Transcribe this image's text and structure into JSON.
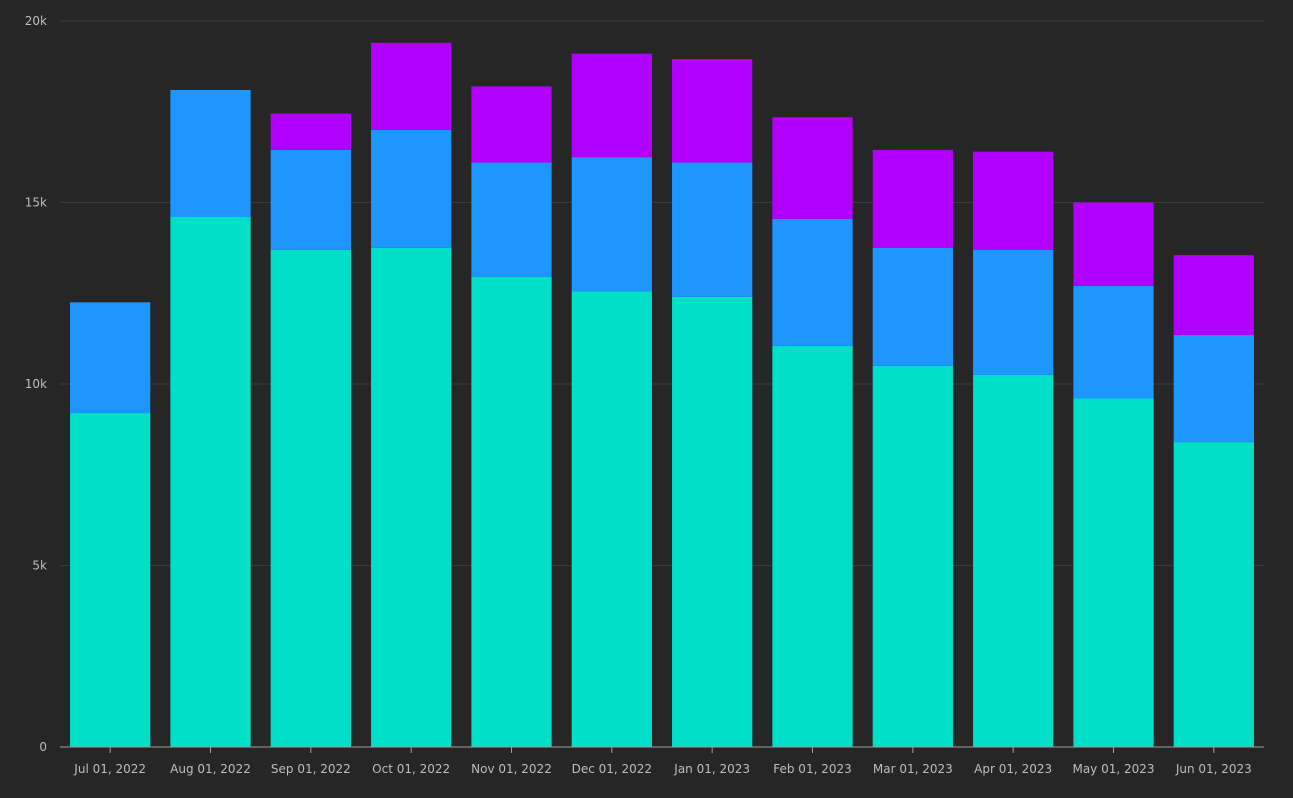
{
  "chart_data": {
    "type": "bar",
    "stacked": true,
    "title": "",
    "xlabel": "",
    "ylabel": "",
    "ylim": [
      0,
      20000
    ],
    "y_ticks": [
      {
        "value": 0,
        "label": "0"
      },
      {
        "value": 5000,
        "label": "5k"
      },
      {
        "value": 10000,
        "label": "10k"
      },
      {
        "value": 15000,
        "label": "15k"
      },
      {
        "value": 20000,
        "label": "20k"
      }
    ],
    "grid": true,
    "legend": "none",
    "categories": [
      "Jul 01, 2022",
      "Aug 01, 2022",
      "Sep 01, 2022",
      "Oct 01, 2022",
      "Nov 01, 2022",
      "Dec 01, 2022",
      "Jan 01, 2023",
      "Feb 01, 2023",
      "Mar 01, 2023",
      "Apr 01, 2023",
      "May 01, 2023",
      "Jun 01, 2023"
    ],
    "series": [
      {
        "color": "#00e0c8",
        "values": [
          9200,
          14600,
          13700,
          13750,
          12950,
          12550,
          12400,
          11050,
          10500,
          10250,
          9600,
          8400
        ]
      },
      {
        "color": "#1e96ff",
        "values": [
          3050,
          3500,
          2750,
          3250,
          3150,
          3700,
          3700,
          3500,
          3250,
          3450,
          3100,
          2950
        ]
      },
      {
        "color": "#b200ff",
        "values": [
          0,
          0,
          1000,
          2400,
          2100,
          2850,
          2850,
          2800,
          2700,
          2700,
          2300,
          2200
        ]
      }
    ]
  }
}
